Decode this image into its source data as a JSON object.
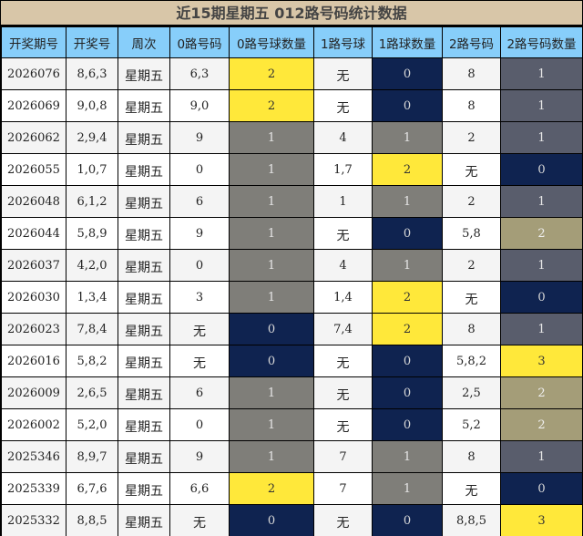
{
  "title": "近15期星期五 012路号码统计数据",
  "colors": {
    "title_bg": "#D8C6A8",
    "header_bg": "#87CEFA",
    "count_3": "#FFE83A",
    "count_2_0_1road": "#FFE83A",
    "count_2_2road": "#A49D78",
    "count_1_0_1road": "#7F7E79",
    "count_1_2road": "#595D6C",
    "count_0": "#0F2350",
    "row_odd": "#F4F4F4",
    "row_even": "#FFFFFF"
  },
  "columns": [
    "开奖期号",
    "开奖号",
    "周次",
    "0路号码",
    "0路号球数量",
    "1路号球",
    "1路球数量",
    "2路号码",
    "2路号码数量"
  ],
  "rows": [
    {
      "issue": "2026076",
      "numbers": "8,6,3",
      "weekday": "星期五",
      "r0": "6,3",
      "r0_count": "2",
      "r1": "无",
      "r1_count": "0",
      "r2": "8",
      "r2_count": "1"
    },
    {
      "issue": "2026069",
      "numbers": "9,0,8",
      "weekday": "星期五",
      "r0": "9,0",
      "r0_count": "2",
      "r1": "无",
      "r1_count": "0",
      "r2": "8",
      "r2_count": "1"
    },
    {
      "issue": "2026062",
      "numbers": "2,9,4",
      "weekday": "星期五",
      "r0": "9",
      "r0_count": "1",
      "r1": "4",
      "r1_count": "1",
      "r2": "2",
      "r2_count": "1"
    },
    {
      "issue": "2026055",
      "numbers": "1,0,7",
      "weekday": "星期五",
      "r0": "0",
      "r0_count": "1",
      "r1": "1,7",
      "r1_count": "2",
      "r2": "无",
      "r2_count": "0"
    },
    {
      "issue": "2026048",
      "numbers": "6,1,2",
      "weekday": "星期五",
      "r0": "6",
      "r0_count": "1",
      "r1": "1",
      "r1_count": "1",
      "r2": "2",
      "r2_count": "1"
    },
    {
      "issue": "2026044",
      "numbers": "5,8,9",
      "weekday": "星期五",
      "r0": "9",
      "r0_count": "1",
      "r1": "无",
      "r1_count": "0",
      "r2": "5,8",
      "r2_count": "2"
    },
    {
      "issue": "2026037",
      "numbers": "4,2,0",
      "weekday": "星期五",
      "r0": "0",
      "r0_count": "1",
      "r1": "4",
      "r1_count": "1",
      "r2": "2",
      "r2_count": "1"
    },
    {
      "issue": "2026030",
      "numbers": "1,3,4",
      "weekday": "星期五",
      "r0": "3",
      "r0_count": "1",
      "r1": "1,4",
      "r1_count": "2",
      "r2": "无",
      "r2_count": "0"
    },
    {
      "issue": "2026023",
      "numbers": "7,8,4",
      "weekday": "星期五",
      "r0": "无",
      "r0_count": "0",
      "r1": "7,4",
      "r1_count": "2",
      "r2": "8",
      "r2_count": "1"
    },
    {
      "issue": "2026016",
      "numbers": "5,8,2",
      "weekday": "星期五",
      "r0": "无",
      "r0_count": "0",
      "r1": "无",
      "r1_count": "0",
      "r2": "5,8,2",
      "r2_count": "3"
    },
    {
      "issue": "2026009",
      "numbers": "2,6,5",
      "weekday": "星期五",
      "r0": "6",
      "r0_count": "1",
      "r1": "无",
      "r1_count": "0",
      "r2": "2,5",
      "r2_count": "2"
    },
    {
      "issue": "2026002",
      "numbers": "5,2,0",
      "weekday": "星期五",
      "r0": "0",
      "r0_count": "1",
      "r1": "无",
      "r1_count": "0",
      "r2": "5,2",
      "r2_count": "2"
    },
    {
      "issue": "2025346",
      "numbers": "8,9,7",
      "weekday": "星期五",
      "r0": "9",
      "r0_count": "1",
      "r1": "7",
      "r1_count": "1",
      "r2": "8",
      "r2_count": "1"
    },
    {
      "issue": "2025339",
      "numbers": "6,7,6",
      "weekday": "星期五",
      "r0": "6,6",
      "r0_count": "2",
      "r1": "7",
      "r1_count": "1",
      "r2": "无",
      "r2_count": "0"
    },
    {
      "issue": "2025332",
      "numbers": "8,8,5",
      "weekday": "星期五",
      "r0": "无",
      "r0_count": "0",
      "r1": "无",
      "r1_count": "0",
      "r2": "8,8,5",
      "r2_count": "3"
    }
  ]
}
